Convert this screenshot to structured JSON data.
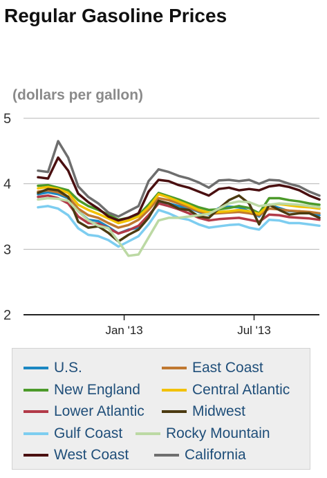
{
  "title": "Regular Gasoline Prices",
  "unit_label": "(dollars per gallon)",
  "chart_data": {
    "type": "line",
    "title": "Regular Gasoline Prices",
    "ylabel": "(dollars per gallon)",
    "xlabel": "",
    "ylim": [
      2,
      5
    ],
    "yticks": [
      "5",
      "4",
      "3",
      "2"
    ],
    "xlim": [
      "2012-09-03",
      "2013-09-30"
    ],
    "xticks": [
      {
        "date": "2013-01-01",
        "label": "Jan '13"
      },
      {
        "date": "2013-07-01",
        "label": "Jul '13"
      }
    ],
    "grid": true,
    "legend_position": "bottom",
    "x": [
      "2012-09-03",
      "2012-09-17",
      "2012-10-01",
      "2012-10-15",
      "2012-10-29",
      "2012-11-12",
      "2012-11-26",
      "2012-12-10",
      "2012-12-24",
      "2013-01-07",
      "2013-01-21",
      "2013-02-04",
      "2013-02-18",
      "2013-03-04",
      "2013-03-18",
      "2013-04-01",
      "2013-04-15",
      "2013-04-29",
      "2013-05-13",
      "2013-05-27",
      "2013-06-10",
      "2013-06-24",
      "2013-07-08",
      "2013-07-22",
      "2013-08-05",
      "2013-08-19",
      "2013-09-02",
      "2013-09-16",
      "2013-09-30"
    ],
    "series": [
      {
        "name": "U.S.",
        "color": "#1b87c2",
        "values": [
          3.84,
          3.87,
          3.84,
          3.78,
          3.58,
          3.45,
          3.43,
          3.34,
          3.24,
          3.3,
          3.33,
          3.5,
          3.72,
          3.7,
          3.66,
          3.63,
          3.57,
          3.53,
          3.63,
          3.65,
          3.64,
          3.58,
          3.5,
          3.68,
          3.63,
          3.58,
          3.58,
          3.55,
          3.52
        ]
      },
      {
        "name": "East Coast",
        "color": "#bf7830",
        "values": [
          3.88,
          3.9,
          3.87,
          3.8,
          3.62,
          3.52,
          3.48,
          3.4,
          3.33,
          3.37,
          3.45,
          3.6,
          3.78,
          3.75,
          3.7,
          3.64,
          3.58,
          3.54,
          3.55,
          3.56,
          3.57,
          3.55,
          3.52,
          3.62,
          3.61,
          3.59,
          3.58,
          3.57,
          3.55
        ]
      },
      {
        "name": "New England",
        "color": "#4c9a2a",
        "values": [
          3.97,
          3.98,
          3.94,
          3.9,
          3.75,
          3.66,
          3.6,
          3.53,
          3.45,
          3.48,
          3.52,
          3.68,
          3.86,
          3.81,
          3.76,
          3.7,
          3.64,
          3.6,
          3.61,
          3.63,
          3.66,
          3.63,
          3.55,
          3.78,
          3.78,
          3.75,
          3.73,
          3.7,
          3.68
        ]
      },
      {
        "name": "Central Atlantic",
        "color": "#f2c100",
        "values": [
          3.93,
          3.95,
          3.92,
          3.86,
          3.68,
          3.6,
          3.54,
          3.47,
          3.4,
          3.44,
          3.5,
          3.64,
          3.84,
          3.79,
          3.73,
          3.67,
          3.6,
          3.56,
          3.57,
          3.58,
          3.6,
          3.58,
          3.54,
          3.68,
          3.69,
          3.67,
          3.65,
          3.64,
          3.62
        ]
      },
      {
        "name": "Lower Atlantic",
        "color": "#b23a48",
        "values": [
          3.8,
          3.82,
          3.78,
          3.7,
          3.5,
          3.4,
          3.39,
          3.32,
          3.24,
          3.29,
          3.36,
          3.52,
          3.7,
          3.66,
          3.61,
          3.55,
          3.48,
          3.44,
          3.46,
          3.47,
          3.48,
          3.45,
          3.42,
          3.53,
          3.52,
          3.49,
          3.48,
          3.47,
          3.45
        ]
      },
      {
        "name": "Midwest",
        "color": "#4b3a10",
        "values": [
          3.86,
          3.92,
          3.9,
          3.8,
          3.42,
          3.33,
          3.35,
          3.25,
          3.12,
          3.22,
          3.3,
          3.48,
          3.74,
          3.7,
          3.62,
          3.6,
          3.5,
          3.48,
          3.62,
          3.75,
          3.82,
          3.7,
          3.38,
          3.68,
          3.6,
          3.53,
          3.55,
          3.55,
          3.48
        ]
      },
      {
        "name": "Gulf Coast",
        "color": "#7dcdf0",
        "values": [
          3.64,
          3.66,
          3.62,
          3.52,
          3.32,
          3.22,
          3.2,
          3.14,
          3.04,
          3.12,
          3.2,
          3.38,
          3.6,
          3.55,
          3.48,
          3.45,
          3.38,
          3.33,
          3.35,
          3.37,
          3.38,
          3.33,
          3.3,
          3.45,
          3.44,
          3.4,
          3.4,
          3.38,
          3.36
        ]
      },
      {
        "name": "Rocky Mountain",
        "color": "#bcd9a4",
        "values": [
          3.76,
          3.78,
          3.77,
          3.74,
          3.58,
          3.44,
          3.36,
          3.32,
          3.12,
          2.9,
          2.92,
          3.18,
          3.44,
          3.48,
          3.48,
          3.5,
          3.52,
          3.54,
          3.62,
          3.7,
          3.73,
          3.72,
          3.66,
          3.68,
          3.7,
          3.69,
          3.68,
          3.66,
          3.64
        ]
      },
      {
        "name": "West Coast",
        "color": "#4a0f10",
        "values": [
          4.1,
          4.08,
          4.4,
          4.2,
          3.85,
          3.72,
          3.62,
          3.5,
          3.44,
          3.48,
          3.55,
          3.88,
          4.06,
          4.04,
          3.98,
          3.94,
          3.88,
          3.82,
          3.92,
          3.94,
          3.9,
          3.92,
          3.9,
          3.96,
          3.98,
          3.95,
          3.9,
          3.82,
          3.76
        ]
      },
      {
        "name": "California",
        "color": "#6e6e6e",
        "values": [
          4.2,
          4.18,
          4.65,
          4.4,
          3.96,
          3.8,
          3.7,
          3.56,
          3.5,
          3.58,
          3.66,
          4.04,
          4.22,
          4.18,
          4.12,
          4.08,
          4.02,
          3.94,
          4.05,
          4.06,
          4.04,
          4.06,
          4.0,
          4.06,
          4.05,
          4.0,
          3.96,
          3.88,
          3.82
        ]
      }
    ]
  }
}
